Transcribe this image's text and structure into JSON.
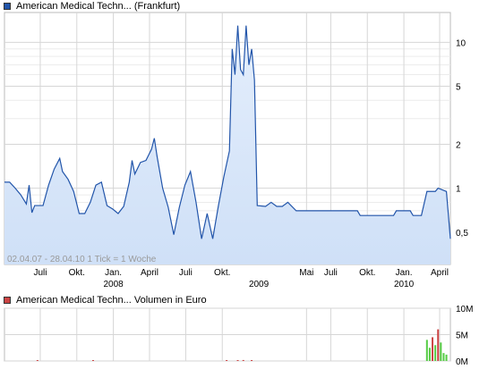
{
  "price_chart": {
    "legend_label": "American Medical Techn... (Frankfurt)",
    "legend_color": "#2255aa",
    "watermark": "02.04.07 - 28.04.10   1 Tick = 1 Woche"
  },
  "volume_chart": {
    "legend_label": "American Medical Techn... Volumen in Euro",
    "legend_color": "#cc4444"
  },
  "chart_data": [
    {
      "type": "area",
      "scale": "log",
      "date_range": [
        "2007-04-02",
        "2010-04-28"
      ],
      "ylim": [
        0.3,
        16
      ],
      "yticks": [
        {
          "label": "10",
          "value": 10
        },
        {
          "label": "5",
          "value": 5
        },
        {
          "label": "2",
          "value": 2
        },
        {
          "label": "1",
          "value": 1
        },
        {
          "label": "0,5",
          "value": 0.5
        }
      ],
      "xticks": [
        {
          "label": "Juli",
          "date": "2007-07-01"
        },
        {
          "label": "Okt.",
          "date": "2007-10-01"
        },
        {
          "label": "Jan.",
          "date": "2008-01-01"
        },
        {
          "label": "April",
          "date": "2008-04-01"
        },
        {
          "label": "Juli",
          "date": "2008-07-01"
        },
        {
          "label": "Okt.",
          "date": "2008-10-01"
        },
        {
          "label": "Mai",
          "date": "2009-05-01"
        },
        {
          "label": "Juli",
          "date": "2009-07-01"
        },
        {
          "label": "Okt.",
          "date": "2009-10-01"
        },
        {
          "label": "Jan.",
          "date": "2010-01-01"
        },
        {
          "label": "April",
          "date": "2010-04-01"
        }
      ],
      "year_labels": [
        {
          "label": "2008",
          "date": "2008-01-01"
        },
        {
          "label": "2009",
          "date": "2009-01-01"
        },
        {
          "label": "2010",
          "date": "2010-01-01"
        }
      ],
      "series": [
        {
          "color": "#2255aa",
          "fill": "#cfe0f7",
          "points": [
            [
              "2007-04-02",
              1.1
            ],
            [
              "2007-04-15",
              1.1
            ],
            [
              "2007-04-29",
              1.0
            ],
            [
              "2007-05-13",
              0.9
            ],
            [
              "2007-05-27",
              0.78
            ],
            [
              "2007-06-03",
              1.05
            ],
            [
              "2007-06-10",
              0.68
            ],
            [
              "2007-06-17",
              0.76
            ],
            [
              "2007-07-01",
              0.76
            ],
            [
              "2007-07-08",
              0.76
            ],
            [
              "2007-07-22",
              1.05
            ],
            [
              "2007-08-05",
              1.35
            ],
            [
              "2007-08-19",
              1.6
            ],
            [
              "2007-08-26",
              1.3
            ],
            [
              "2007-09-09",
              1.15
            ],
            [
              "2007-09-23",
              0.95
            ],
            [
              "2007-10-07",
              0.67
            ],
            [
              "2007-10-21",
              0.67
            ],
            [
              "2007-11-04",
              0.8
            ],
            [
              "2007-11-18",
              1.05
            ],
            [
              "2007-12-02",
              1.1
            ],
            [
              "2007-12-16",
              0.76
            ],
            [
              "2007-12-30",
              0.72
            ],
            [
              "2008-01-13",
              0.67
            ],
            [
              "2008-01-27",
              0.75
            ],
            [
              "2008-02-10",
              1.1
            ],
            [
              "2008-02-17",
              1.55
            ],
            [
              "2008-02-24",
              1.25
            ],
            [
              "2008-03-09",
              1.5
            ],
            [
              "2008-03-23",
              1.55
            ],
            [
              "2008-04-06",
              1.85
            ],
            [
              "2008-04-13",
              2.2
            ],
            [
              "2008-04-20",
              1.65
            ],
            [
              "2008-05-04",
              1.0
            ],
            [
              "2008-05-18",
              0.74
            ],
            [
              "2008-06-01",
              0.48
            ],
            [
              "2008-06-15",
              0.74
            ],
            [
              "2008-06-29",
              1.05
            ],
            [
              "2008-07-13",
              1.3
            ],
            [
              "2008-07-27",
              0.8
            ],
            [
              "2008-08-10",
              0.45
            ],
            [
              "2008-08-24",
              0.67
            ],
            [
              "2008-09-07",
              0.45
            ],
            [
              "2008-09-21",
              0.75
            ],
            [
              "2008-10-05",
              1.2
            ],
            [
              "2008-10-19",
              1.8
            ],
            [
              "2008-10-26",
              9.0
            ],
            [
              "2008-11-02",
              6.0
            ],
            [
              "2008-11-09",
              13.0
            ],
            [
              "2008-11-16",
              6.5
            ],
            [
              "2008-11-23",
              6.0
            ],
            [
              "2008-11-30",
              13.0
            ],
            [
              "2008-12-07",
              7.0
            ],
            [
              "2008-12-14",
              9.0
            ],
            [
              "2008-12-21",
              5.5
            ],
            [
              "2008-12-28",
              0.76
            ],
            [
              "2009-01-18",
              0.75
            ],
            [
              "2009-02-01",
              0.8
            ],
            [
              "2009-02-15",
              0.75
            ],
            [
              "2009-03-01",
              0.75
            ],
            [
              "2009-03-15",
              0.8
            ],
            [
              "2009-04-05",
              0.7
            ],
            [
              "2009-06-07",
              0.7
            ],
            [
              "2009-09-06",
              0.7
            ],
            [
              "2009-09-13",
              0.65
            ],
            [
              "2009-12-06",
              0.65
            ],
            [
              "2009-12-13",
              0.7
            ],
            [
              "2010-01-17",
              0.7
            ],
            [
              "2010-01-24",
              0.65
            ],
            [
              "2010-02-14",
              0.65
            ],
            [
              "2010-02-28",
              0.95
            ],
            [
              "2010-03-21",
              0.95
            ],
            [
              "2010-03-28",
              1.0
            ],
            [
              "2010-04-18",
              0.95
            ],
            [
              "2010-04-28",
              0.45
            ]
          ]
        }
      ]
    },
    {
      "type": "bar",
      "ylim": [
        0,
        10000000
      ],
      "yticks": [
        {
          "label": "10M",
          "value": 10000000
        },
        {
          "label": "5M",
          "value": 5000000
        },
        {
          "label": "0M",
          "value": 0
        }
      ],
      "series": [
        {
          "points": [
            [
              "2007-06-24",
              80000,
              "#cc4444"
            ],
            [
              "2007-11-11",
              60000,
              "#cc4444"
            ],
            [
              "2008-10-12",
              120000,
              "#cc4444"
            ],
            [
              "2008-11-09",
              100000,
              "#cc4444"
            ],
            [
              "2008-11-23",
              180000,
              "#cc4444"
            ],
            [
              "2008-12-14",
              90000,
              "#cc4444"
            ],
            [
              "2010-02-28",
              4000000,
              "#55cc44"
            ],
            [
              "2010-03-07",
              2500000,
              "#55cc44"
            ],
            [
              "2010-03-14",
              4500000,
              "#cc4444"
            ],
            [
              "2010-03-21",
              3000000,
              "#55cc44"
            ],
            [
              "2010-03-28",
              6000000,
              "#cc4444"
            ],
            [
              "2010-04-04",
              3500000,
              "#55cc44"
            ],
            [
              "2010-04-11",
              1500000,
              "#55cc44"
            ],
            [
              "2010-04-18",
              1200000,
              "#55cc44"
            ]
          ]
        }
      ]
    }
  ]
}
